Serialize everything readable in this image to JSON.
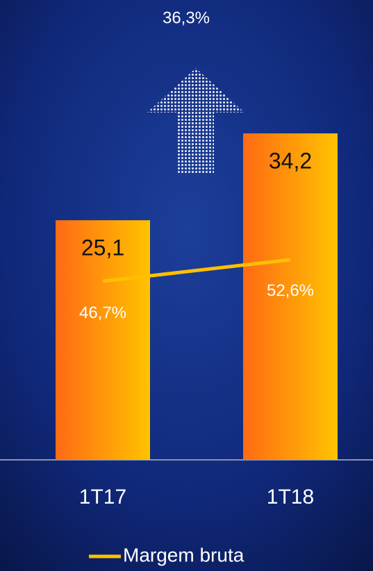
{
  "chart_data": {
    "type": "bar",
    "annotation": "36,3%",
    "categories": [
      "1T17",
      "1T18"
    ],
    "series": [
      {
        "type": "bar",
        "values": [
          25.1,
          34.2
        ],
        "value_labels": [
          "25,1",
          "34,2"
        ],
        "color": "#ffc000"
      },
      {
        "name": "Margem bruta",
        "type": "line",
        "axis": "y2",
        "values": [
          46.7,
          52.6
        ],
        "value_labels": [
          "46,7%",
          "52,6%"
        ],
        "color": "#ffc000"
      }
    ]
  }
}
